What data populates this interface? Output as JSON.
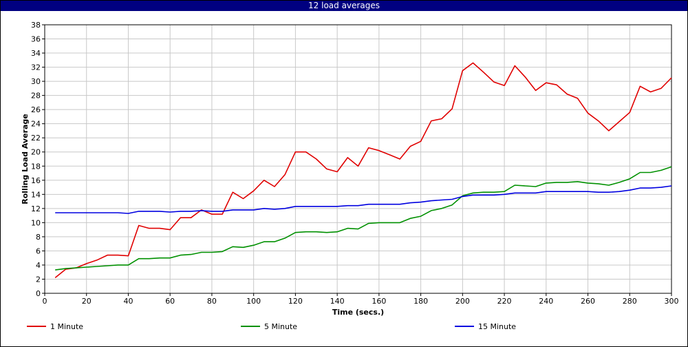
{
  "window": {
    "title": "12 load averages"
  },
  "chart_data": {
    "type": "line",
    "title": "12 load averages",
    "xlabel": "Time (secs.)",
    "ylabel": "Rolling Load Average",
    "xlim": [
      0,
      300
    ],
    "ylim": [
      0,
      38
    ],
    "xticks": [
      0,
      20,
      40,
      60,
      80,
      100,
      120,
      140,
      160,
      180,
      200,
      220,
      240,
      260,
      280,
      300
    ],
    "yticks": [
      0,
      2,
      4,
      6,
      8,
      10,
      12,
      14,
      16,
      18,
      20,
      22,
      24,
      26,
      28,
      30,
      32,
      34,
      36,
      38
    ],
    "grid": true,
    "legend_position": "bottom",
    "x": [
      5,
      10,
      15,
      20,
      25,
      30,
      35,
      40,
      45,
      50,
      55,
      60,
      65,
      70,
      75,
      80,
      85,
      90,
      95,
      100,
      105,
      110,
      115,
      120,
      125,
      130,
      135,
      140,
      145,
      150,
      155,
      160,
      165,
      170,
      175,
      180,
      185,
      190,
      195,
      200,
      205,
      210,
      215,
      220,
      225,
      230,
      235,
      240,
      245,
      250,
      255,
      260,
      265,
      270,
      275,
      280,
      285,
      290,
      295,
      300
    ],
    "series": [
      {
        "name": "1 Minute",
        "color": "#e00000",
        "values": [
          2.2,
          3.4,
          3.6,
          4.2,
          4.7,
          5.4,
          5.4,
          5.3,
          9.6,
          9.2,
          9.2,
          9.0,
          10.7,
          10.7,
          11.8,
          11.2,
          11.2,
          14.3,
          13.4,
          14.5,
          16.0,
          15.1,
          16.8,
          20.0,
          20.0,
          19.0,
          17.6,
          17.2,
          19.2,
          18.0,
          20.6,
          20.2,
          19.6,
          19.0,
          20.8,
          21.5,
          24.4,
          24.7,
          26.1,
          31.5,
          32.6,
          31.3,
          29.9,
          29.4,
          32.2,
          30.6,
          28.7,
          29.8,
          29.5,
          28.2,
          27.6,
          25.5,
          24.4,
          23.0,
          24.3,
          25.6,
          29.3,
          28.5,
          29.0,
          30.5
        ]
      },
      {
        "name": "5 Minute",
        "color": "#009000",
        "values": [
          3.3,
          3.5,
          3.6,
          3.7,
          3.8,
          3.9,
          4.0,
          4.0,
          4.9,
          4.9,
          5.0,
          5.0,
          5.4,
          5.5,
          5.8,
          5.8,
          5.9,
          6.6,
          6.5,
          6.8,
          7.3,
          7.3,
          7.8,
          8.6,
          8.7,
          8.7,
          8.6,
          8.7,
          9.2,
          9.1,
          9.9,
          10.0,
          10.0,
          10.0,
          10.6,
          10.9,
          11.7,
          12.0,
          12.5,
          13.8,
          14.2,
          14.3,
          14.3,
          14.4,
          15.3,
          15.2,
          15.1,
          15.6,
          15.7,
          15.7,
          15.8,
          15.6,
          15.5,
          15.3,
          15.7,
          16.2,
          17.1,
          17.1,
          17.4,
          17.9
        ]
      },
      {
        "name": "15 Minute",
        "color": "#0000e0",
        "values": [
          11.4,
          11.4,
          11.4,
          11.4,
          11.4,
          11.4,
          11.4,
          11.3,
          11.6,
          11.6,
          11.6,
          11.5,
          11.6,
          11.6,
          11.7,
          11.6,
          11.6,
          11.8,
          11.8,
          11.8,
          12.0,
          11.9,
          12.0,
          12.3,
          12.3,
          12.3,
          12.3,
          12.3,
          12.4,
          12.4,
          12.6,
          12.6,
          12.6,
          12.6,
          12.8,
          12.9,
          13.1,
          13.2,
          13.3,
          13.7,
          13.9,
          13.9,
          13.9,
          14.0,
          14.2,
          14.2,
          14.2,
          14.4,
          14.4,
          14.4,
          14.4,
          14.4,
          14.3,
          14.3,
          14.4,
          14.6,
          14.9,
          14.9,
          15.0,
          15.2
        ]
      }
    ]
  }
}
